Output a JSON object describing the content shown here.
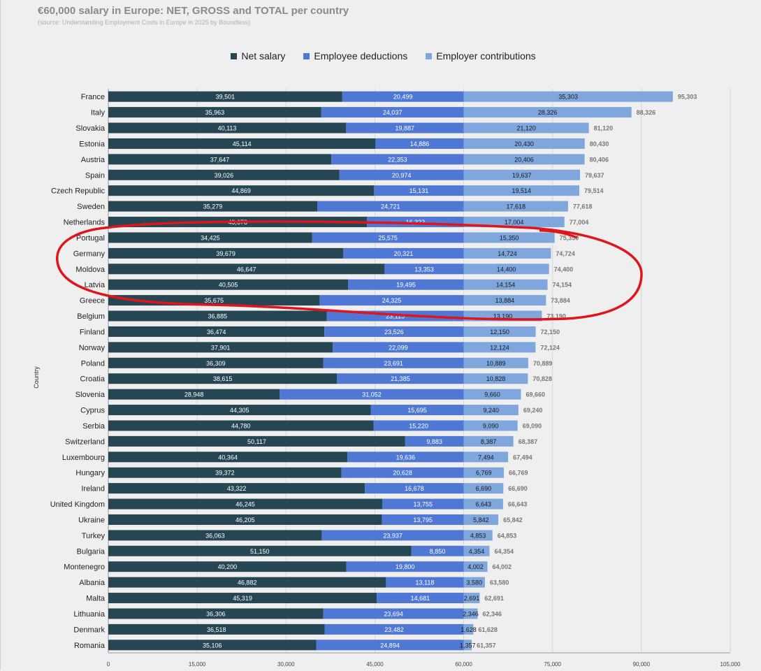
{
  "page": {
    "title": "€60,000 salary in Europe: NET, GROSS and TOTAL per country",
    "subtitle": "(source: Understanding Employment Costs in Europe in 2025 by Boundless)"
  },
  "colors": {
    "net": "#264653",
    "employee": "#4f78d4",
    "employer": "#7fa6dd",
    "annotation": "#e0141b",
    "grid": "#d6d6d6",
    "total_label": "#777777"
  },
  "chart_data": {
    "type": "bar",
    "orientation": "horizontal",
    "stacked": true,
    "title": "€60,000 salary in Europe: NET, GROSS and TOTAL per country",
    "subtitle": "(source: Understanding Employment Costs in Europe in 2025 by Boundless)",
    "xlabel": "",
    "ylabel": "Country",
    "xlim": [
      0,
      105000
    ],
    "xticks": [
      0,
      15000,
      30000,
      45000,
      60000,
      75000,
      90000,
      105000
    ],
    "xtick_labels": [
      "0",
      "15,000",
      "30,000",
      "45,000",
      "60,000",
      "75,000",
      "90,000",
      "105,000"
    ],
    "grid": true,
    "legend_position": "top",
    "categories": [
      "France",
      "Italy",
      "Slovakia",
      "Estonia",
      "Austria",
      "Spain",
      "Czech Republic",
      "Sweden",
      "Netherlands",
      "Portugal",
      "Germany",
      "Moldova",
      "Latvia",
      "Greece",
      "Belgium",
      "Finland",
      "Norway",
      "Poland",
      "Croatia",
      "Slovenia",
      "Cyprus",
      "Serbia",
      "Switzerland",
      "Luxembourg",
      "Hungary",
      "Ireland",
      "United Kingdom",
      "Ukraine",
      "Turkey",
      "Bulgaria",
      "Montenegro",
      "Albania",
      "Malta",
      "Lithuania",
      "Denmark",
      "Romania"
    ],
    "series": [
      {
        "name": "Net salary",
        "values": [
          39501,
          35963,
          40113,
          45114,
          37647,
          39026,
          44869,
          35279,
          43678,
          34425,
          39679,
          46647,
          40505,
          35675,
          36885,
          36474,
          37901,
          36309,
          38615,
          28948,
          44305,
          44780,
          50117,
          40364,
          39372,
          43322,
          46245,
          46205,
          36063,
          51150,
          40200,
          46882,
          45319,
          36306,
          36518,
          35106
        ]
      },
      {
        "name": "Employee deductions",
        "values": [
          20499,
          24037,
          19887,
          14886,
          22353,
          20974,
          15131,
          24721,
          16322,
          25575,
          20321,
          13353,
          19495,
          24325,
          23115,
          23526,
          22099,
          23691,
          21385,
          31052,
          15695,
          15220,
          9883,
          19636,
          20628,
          16678,
          13755,
          13795,
          23937,
          8850,
          19800,
          13118,
          14681,
          23694,
          23482,
          24894
        ]
      },
      {
        "name": "Employer contributions",
        "values": [
          35303,
          28326,
          21120,
          20430,
          20406,
          19637,
          19514,
          17618,
          17004,
          15350,
          14724,
          14400,
          14154,
          13884,
          13190,
          12150,
          12124,
          10889,
          10828,
          9660,
          9240,
          9090,
          8387,
          7494,
          6769,
          6690,
          6643,
          5842,
          4853,
          4354,
          4002,
          3580,
          2691,
          2346,
          1628,
          1357
        ]
      }
    ],
    "totals": [
      95303,
      88326,
      81120,
      80430,
      80406,
      79637,
      79514,
      77618,
      77004,
      75350,
      74724,
      74400,
      74154,
      73884,
      73190,
      72150,
      72124,
      70889,
      70828,
      69660,
      69240,
      69090,
      68387,
      67494,
      66769,
      66690,
      66643,
      65842,
      64853,
      64354,
      64002,
      63580,
      62691,
      62346,
      61628,
      61357
    ]
  }
}
